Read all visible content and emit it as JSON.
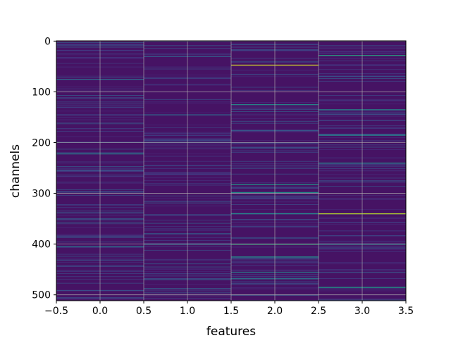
{
  "chart_data": {
    "type": "heatmap",
    "colormap": "viridis",
    "title": "",
    "xlabel": "features",
    "ylabel": "channels",
    "n_features": 4,
    "n_channels": 512,
    "xlim": [
      -0.5,
      3.5
    ],
    "ylim": [
      511.5,
      -0.5
    ],
    "xticks": [
      -0.5,
      0.0,
      0.5,
      1.0,
      1.5,
      2.0,
      2.5,
      3.0,
      3.5
    ],
    "xtick_labels": [
      "−0.5",
      "0.0",
      "0.5",
      "1.0",
      "1.5",
      "2.0",
      "2.5",
      "3.0",
      "3.5"
    ],
    "yticks": [
      0,
      100,
      200,
      300,
      400,
      500
    ],
    "ytick_labels": [
      "0",
      "100",
      "200",
      "300",
      "400",
      "500"
    ],
    "grid": true,
    "value_range": [
      0,
      1
    ],
    "baseline_value": 0.05,
    "highlights": [
      {
        "feature": 0,
        "channel": 75,
        "value": 0.35
      },
      {
        "feature": 0,
        "channel": 222,
        "value": 0.45
      },
      {
        "feature": 0,
        "channel": 405,
        "value": 0.4
      },
      {
        "feature": 1,
        "channel": 30,
        "value": 0.3
      },
      {
        "feature": 1,
        "channel": 145,
        "value": 0.35
      },
      {
        "feature": 1,
        "channel": 400,
        "value": 0.4
      },
      {
        "feature": 1,
        "channel": 470,
        "value": 0.3
      },
      {
        "feature": 2,
        "channel": 47,
        "value": 0.95
      },
      {
        "feature": 2,
        "channel": 125,
        "value": 0.5
      },
      {
        "feature": 2,
        "channel": 282,
        "value": 0.55
      },
      {
        "feature": 2,
        "channel": 298,
        "value": 0.5
      },
      {
        "feature": 2,
        "channel": 340,
        "value": 0.5
      },
      {
        "feature": 2,
        "channel": 400,
        "value": 0.65
      },
      {
        "feature": 2,
        "channel": 425,
        "value": 0.5
      },
      {
        "feature": 2,
        "channel": 455,
        "value": 0.45
      },
      {
        "feature": 2,
        "channel": 468,
        "value": 0.45
      },
      {
        "feature": 3,
        "channel": 28,
        "value": 0.6
      },
      {
        "feature": 3,
        "channel": 135,
        "value": 0.5
      },
      {
        "feature": 3,
        "channel": 185,
        "value": 0.5
      },
      {
        "feature": 3,
        "channel": 240,
        "value": 0.5
      },
      {
        "feature": 3,
        "channel": 340,
        "value": 0.9
      },
      {
        "feature": 3,
        "channel": 400,
        "value": 0.5
      },
      {
        "feature": 3,
        "channel": 485,
        "value": 0.55
      }
    ]
  }
}
